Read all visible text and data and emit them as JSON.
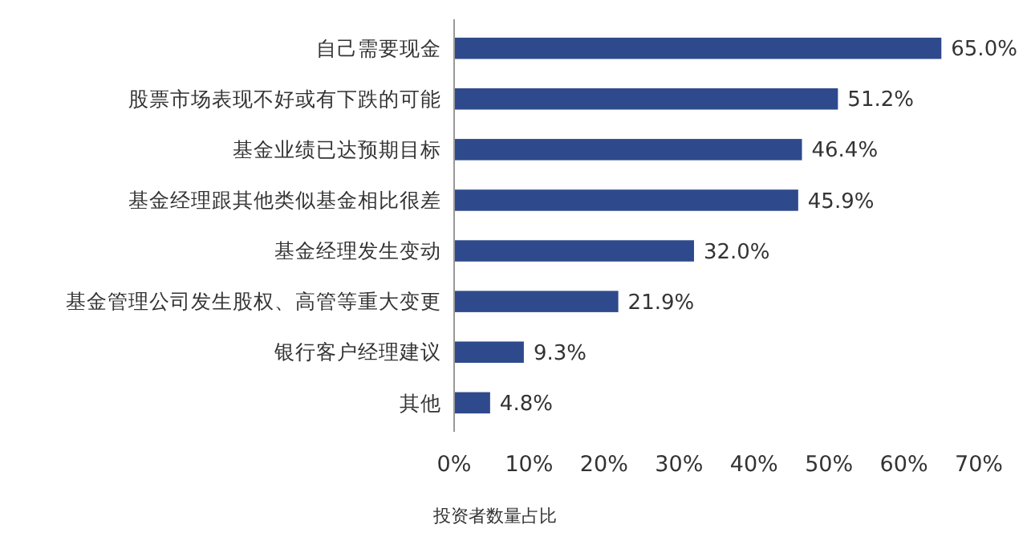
{
  "chart_data": {
    "type": "bar",
    "orientation": "horizontal",
    "categories": [
      "自己需要现金",
      "股票市场表现不好或有下跌的可能",
      "基金业绩已达预期目标",
      "基金经理跟其他类似基金相比很差",
      "基金经理发生变动",
      "基金管理公司发生股权、高管等重大变更",
      "银行客户经理建议",
      "其他"
    ],
    "values": [
      65.0,
      51.2,
      46.4,
      45.9,
      32.0,
      21.9,
      9.3,
      4.8
    ],
    "value_labels": [
      "65.0%",
      "51.2%",
      "46.4%",
      "45.9%",
      "32.0%",
      "21.9%",
      "9.3%",
      "4.8%"
    ],
    "color": "#2e4a8c",
    "xlabel": "投资者数量占比",
    "xlim": [
      0,
      70
    ],
    "xticks": [
      {
        "value": 0,
        "label": "0%"
      },
      {
        "value": 10,
        "label": "10%"
      },
      {
        "value": 20,
        "label": "20%"
      },
      {
        "value": 30,
        "label": "30%"
      },
      {
        "value": 40,
        "label": "40%"
      },
      {
        "value": 50,
        "label": "50%"
      },
      {
        "value": 60,
        "label": "60%"
      },
      {
        "value": 70,
        "label": "70%"
      }
    ],
    "grid": false
  }
}
